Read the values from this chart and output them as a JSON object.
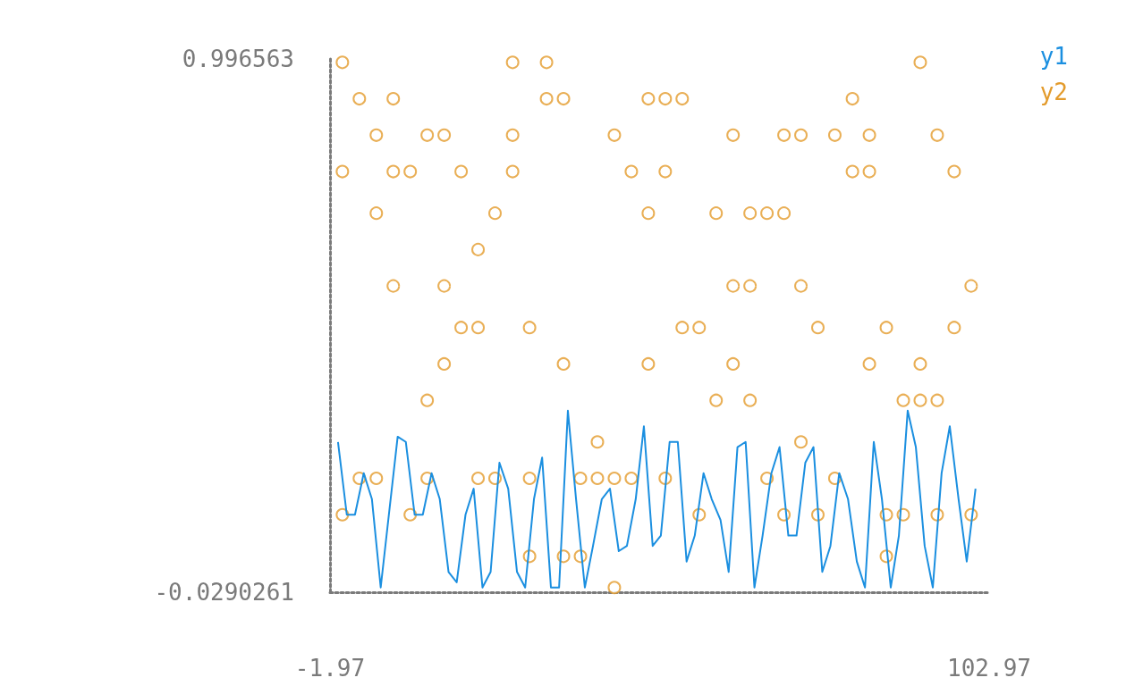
{
  "chart_data": {
    "type": "line",
    "series": [
      {
        "name": "y1",
        "color": "#1b8fe0",
        "x": [
          -0.7,
          0.7,
          2.0,
          3.4,
          4.7,
          6.1,
          7.4,
          8.8,
          10.1,
          11.5,
          12.8,
          14.2,
          15.5,
          16.9,
          18.2,
          19.6,
          20.9,
          22.3,
          23.6,
          25.0,
          26.4,
          27.8,
          29.1,
          30.5,
          31.8,
          33.2,
          34.5,
          35.9,
          37.2,
          38.6,
          39.9,
          41.3,
          42.6,
          44.0,
          45.3,
          46.7,
          48.0,
          49.4,
          50.7,
          52.1,
          53.4,
          54.8,
          56.1,
          57.5,
          58.8,
          60.2,
          61.5,
          62.9,
          64.2,
          65.6,
          66.9,
          68.3,
          69.6,
          71.0,
          72.3,
          73.7,
          75.0,
          76.4,
          77.7,
          79.1,
          80.5,
          81.9,
          83.2,
          84.6,
          85.9,
          87.3,
          88.6,
          90.0,
          91.3,
          92.7,
          94.0,
          95.4,
          96.7,
          98.1,
          99.4,
          100.8
        ],
        "values": [
          0.26,
          0.12,
          0.12,
          0.2,
          0.15,
          -0.02,
          0.12,
          0.27,
          0.26,
          0.12,
          0.12,
          0.2,
          0.15,
          0.01,
          -0.01,
          0.12,
          0.17,
          -0.02,
          0.01,
          0.22,
          0.17,
          0.01,
          -0.02,
          0.15,
          0.23,
          -0.02,
          -0.02,
          0.32,
          0.15,
          -0.02,
          0.06,
          0.15,
          0.17,
          0.05,
          0.06,
          0.15,
          0.29,
          0.06,
          0.08,
          0.26,
          0.26,
          0.03,
          0.08,
          0.2,
          0.15,
          0.11,
          0.01,
          0.25,
          0.26,
          -0.02,
          0.08,
          0.2,
          0.25,
          0.08,
          0.08,
          0.22,
          0.25,
          0.01,
          0.06,
          0.2,
          0.15,
          0.03,
          -0.02,
          0.26,
          0.15,
          -0.02,
          0.08,
          0.32,
          0.25,
          0.06,
          -0.02,
          0.2,
          0.29,
          0.15,
          0.03,
          0.17
        ]
      },
      {
        "name": "y2",
        "type": "scatter",
        "color": "#e39b2c",
        "marker": "circle",
        "x": [
          0,
          0,
          0,
          2.7,
          2.7,
          5.4,
          5.4,
          5.4,
          8.1,
          8.1,
          8.1,
          10.8,
          10.8,
          13.5,
          13.5,
          13.5,
          16.2,
          16.2,
          16.2,
          18.9,
          18.9,
          21.6,
          21.6,
          21.6,
          24.3,
          24.3,
          27.1,
          27.1,
          27.1,
          29.8,
          29.8,
          29.8,
          32.5,
          32.5,
          35.2,
          35.2,
          35.2,
          37.9,
          37.9,
          40.6,
          40.6,
          43.3,
          43.3,
          43.3,
          46.0,
          46.0,
          48.7,
          48.7,
          48.7,
          51.4,
          51.4,
          51.4,
          54.1,
          54.1,
          56.8,
          56.8,
          59.5,
          59.5,
          62.2,
          62.2,
          62.2,
          64.9,
          64.9,
          64.9,
          67.6,
          67.6,
          70.3,
          70.3,
          70.3,
          73.0,
          73.0,
          73.0,
          75.7,
          75.7,
          78.4,
          78.4,
          81.2,
          81.2,
          83.9,
          83.9,
          83.9,
          86.6,
          86.6,
          86.6,
          89.3,
          89.3,
          92.0,
          92.0,
          92.0,
          94.7,
          94.7,
          94.7,
          97.4,
          97.4,
          100.1,
          100.1
        ],
        "values": [
          0.99,
          0.78,
          0.12,
          0.92,
          0.19,
          0.85,
          0.7,
          0.19,
          0.92,
          0.78,
          0.56,
          0.78,
          0.12,
          0.85,
          0.34,
          0.19,
          0.85,
          0.56,
          0.41,
          0.78,
          0.48,
          0.63,
          0.48,
          0.19,
          0.7,
          0.19,
          0.99,
          0.85,
          0.78,
          0.48,
          0.19,
          0.04,
          0.99,
          0.92,
          0.92,
          0.41,
          0.04,
          0.19,
          0.04,
          0.26,
          0.19,
          0.85,
          0.19,
          -0.02,
          0.78,
          0.19,
          0.92,
          0.7,
          0.41,
          0.92,
          0.78,
          0.19,
          0.92,
          0.48,
          0.48,
          0.12,
          0.7,
          0.34,
          0.85,
          0.56,
          0.41,
          0.7,
          0.56,
          0.34,
          0.7,
          0.19,
          0.85,
          0.7,
          0.12,
          0.85,
          0.56,
          0.26,
          0.48,
          0.12,
          0.85,
          0.19,
          0.92,
          0.78,
          0.85,
          0.78,
          0.41,
          0.48,
          0.12,
          0.04,
          0.34,
          0.12,
          0.99,
          0.41,
          0.34,
          0.85,
          0.34,
          0.12,
          0.78,
          0.48,
          0.56,
          0.12
        ]
      }
    ],
    "xlim": [
      -1.97,
      102.97
    ],
    "xticks": [
      -1.97,
      102.97
    ],
    "ylim": [
      -0.0290261,
      0.996563
    ],
    "yticks": [
      -0.0290261,
      0.996563
    ],
    "grid": false,
    "legend": "top right"
  }
}
